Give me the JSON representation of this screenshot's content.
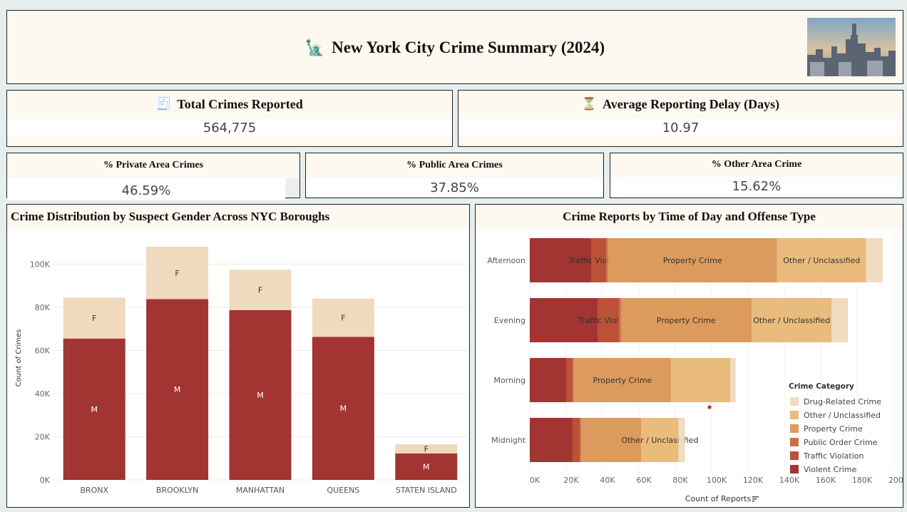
{
  "header": {
    "title": "New York City Crime Summary (2024)",
    "icon": "statue-of-liberty-icon"
  },
  "kpis": {
    "total": {
      "label": "Total Crimes Reported",
      "value": "564,775",
      "icon": "receipt-icon"
    },
    "delay": {
      "label": "Average Reporting Delay (Days)",
      "value": "10.97",
      "icon": "hourglass-icon"
    },
    "private": {
      "label": "% Private Area Crimes",
      "value": "46.59%"
    },
    "public": {
      "label": "% Public Area Crimes",
      "value": "37.85%"
    },
    "other": {
      "label": "% Other Area Crime",
      "value": "15.62%"
    }
  },
  "colors": {
    "violent": "#a23432",
    "traffic": "#bb5238",
    "public_order": "#c87048",
    "property": "#dc9a5c",
    "other": "#e9bb7d",
    "drug": "#f0dcc0",
    "female": "#efdabd"
  },
  "chart_data": [
    {
      "type": "bar",
      "title": "Crime Distribution by Suspect Gender Across NYC Boroughs",
      "ylabel": "Count of Crimes",
      "xlabel": "",
      "categories": [
        "BRONX",
        "BROOKLYN",
        "MANHATTAN",
        "QUEENS",
        "STATEN ISLAND"
      ],
      "series": [
        {
          "name": "M",
          "values": [
            65500,
            83800,
            78700,
            66300,
            12300
          ]
        },
        {
          "name": "F",
          "values": [
            19000,
            24200,
            18700,
            17700,
            4200
          ]
        }
      ],
      "yticks": [
        "0K",
        "20K",
        "40K",
        "60K",
        "80K",
        "100K"
      ],
      "ylim": [
        0,
        113000
      ],
      "stacked": true
    },
    {
      "type": "bar",
      "orientation": "horizontal",
      "stacked": true,
      "title": "Crime Reports by Time of Day and Offense Type",
      "xlabel": "Count of Reports",
      "categories": [
        "Afternoon",
        "Evening",
        "Morning",
        "Midnight"
      ],
      "xticks": [
        "0K",
        "20K",
        "40K",
        "60K",
        "80K",
        "100K",
        "120K",
        "140K",
        "160K",
        "180K",
        "200K"
      ],
      "xlim": [
        0,
        200000
      ],
      "legend_title": "Crime Category",
      "legend_position": "right",
      "series": [
        {
          "name": "Violent Crime",
          "values": [
            34000,
            37500,
            20000,
            23500
          ]
        },
        {
          "name": "Traffic Violation",
          "values": [
            8000,
            11500,
            3500,
            4000
          ]
        },
        {
          "name": "Public Order Crime",
          "values": [
            1000,
            1000,
            700,
            800
          ]
        },
        {
          "name": "Property Crime",
          "values": [
            93000,
            72000,
            53500,
            33000
          ]
        },
        {
          "name": "Other / Unclassified",
          "values": [
            49000,
            44000,
            32500,
            20500
          ]
        },
        {
          "name": "Drug-Related Crime",
          "values": [
            9000,
            9000,
            3000,
            3500
          ]
        }
      ],
      "segment_labels": [
        [
          "",
          "Traffic Violation",
          "",
          "Property Crime",
          "Other / Unclassified",
          ""
        ],
        [
          "",
          "Traffic Violation",
          "",
          "Property Crime",
          "Other / Unclassified",
          ""
        ],
        [
          "",
          "",
          "",
          "Property Crime",
          "",
          ""
        ],
        [
          "",
          "",
          "",
          "",
          "Other / Unclassified",
          ""
        ]
      ],
      "legend_order": [
        "Drug-Related Crime",
        "Other / Unclassified",
        "Property Crime",
        "Public Order Crime",
        "Traffic Violation",
        "Violent Crime"
      ]
    }
  ]
}
